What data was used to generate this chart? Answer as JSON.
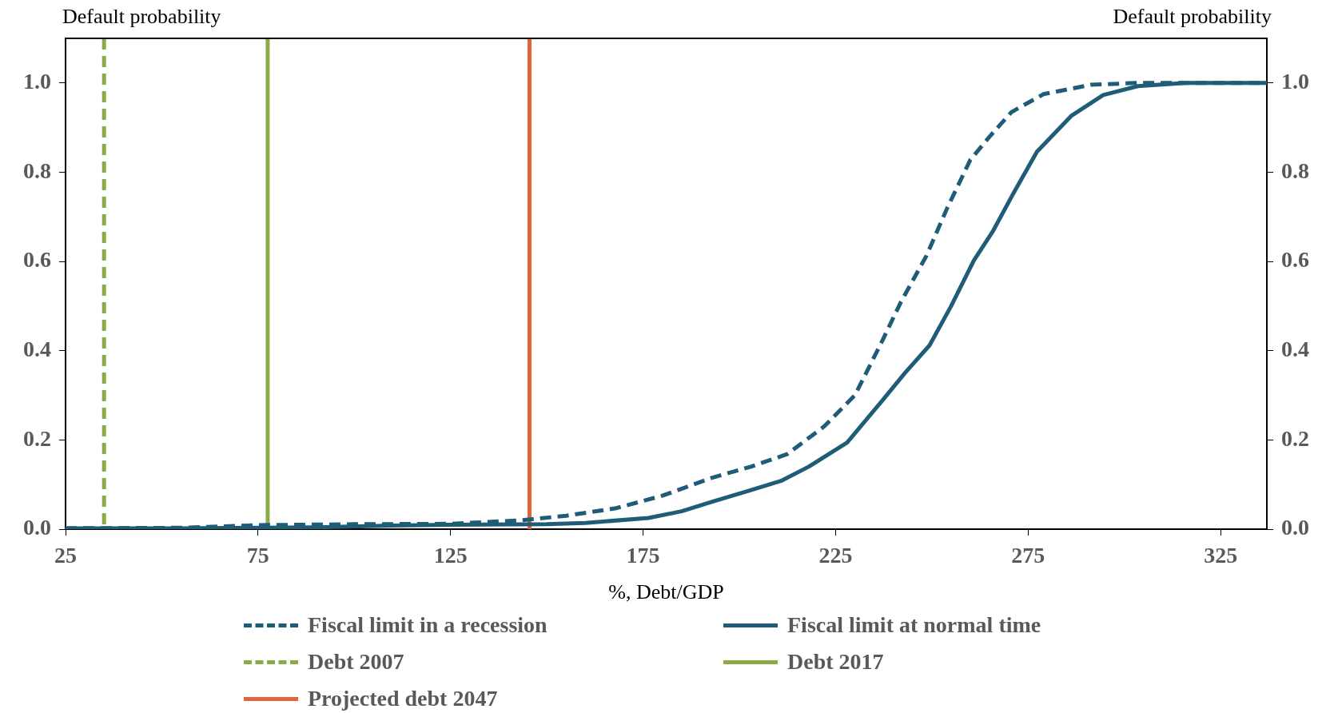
{
  "chart_data": {
    "type": "line",
    "xlabel": "%, Debt/GDP",
    "ylabel": "Default probability",
    "y2label": "Default probability",
    "xlim": [
      25,
      337
    ],
    "xticks": [
      25,
      75,
      125,
      175,
      225,
      275,
      325
    ],
    "ylim": [
      0,
      1.1
    ],
    "yticks": [
      {
        "value": 0,
        "label": "0.0"
      },
      {
        "value": 0.2,
        "label": "0.2"
      },
      {
        "value": 0.4,
        "label": "0.4"
      },
      {
        "value": 0.6,
        "label": "0.6"
      },
      {
        "value": 0.8,
        "label": "0.8"
      },
      {
        "value": 1,
        "label": "1.0"
      }
    ],
    "y2lim": [
      0,
      1.1
    ],
    "y2ticks": [
      {
        "value": 0,
        "label": "0.0"
      },
      {
        "value": 0.2,
        "label": "0.2"
      },
      {
        "value": 0.4,
        "label": "0.4"
      },
      {
        "value": 0.6,
        "label": "0.6"
      },
      {
        "value": 0.8,
        "label": "0.8"
      },
      {
        "value": 1,
        "label": "1.0"
      }
    ],
    "grid": false,
    "legend": "bottom",
    "marker": "none",
    "series": [
      {
        "name": "Fiscal limit in a recession",
        "color": "#1f5c78",
        "line_style": "dashed",
        "x": [
          25,
          55,
          75,
          100,
          125,
          143.5,
          155,
          168,
          180,
          192.8,
          203,
          212.4,
          222,
          230,
          237,
          242,
          248.6,
          254,
          260,
          265,
          270.7,
          279,
          291.3,
          303,
          320,
          337
        ],
        "values": [
          0.002,
          0.003,
          0.009,
          0.011,
          0.012,
          0.02,
          0.03,
          0.047,
          0.075,
          0.115,
          0.14,
          0.168,
          0.23,
          0.3,
          0.42,
          0.51,
          0.613,
          0.72,
          0.828,
          0.88,
          0.935,
          0.975,
          0.996,
          1.0,
          1.0,
          1.0
        ]
      },
      {
        "name": "Fiscal limit at normal time",
        "color": "#1f5c78",
        "line_style": "solid",
        "x": [
          25,
          55,
          75,
          90,
          110,
          125,
          150,
          160,
          176.4,
          185,
          192.8,
          202,
          210.8,
          218,
          228,
          237,
          243,
          249.4,
          255,
          260.9,
          265.8,
          271,
          277.3,
          286.3,
          294.5,
          303.5,
          315.9,
          337
        ],
        "values": [
          0.002,
          0.002,
          0.003,
          0.004,
          0.008,
          0.01,
          0.011,
          0.014,
          0.025,
          0.04,
          0.061,
          0.085,
          0.108,
          0.14,
          0.194,
          0.287,
          0.35,
          0.412,
          0.5,
          0.602,
          0.667,
          0.75,
          0.846,
          0.927,
          0.973,
          0.993,
          1.0,
          1.0
        ]
      }
    ],
    "ref_lines": [
      {
        "axis": "x",
        "value": 35,
        "label": "Debt 2007",
        "color": "#8aab45",
        "line_style": "dashed"
      },
      {
        "axis": "x",
        "value": 77.5,
        "label": "Debt 2017",
        "color": "#8aab45",
        "line_style": "solid"
      },
      {
        "axis": "x",
        "value": 145.5,
        "label": "Projected debt 2047",
        "color": "#e0653a",
        "line_style": "solid"
      }
    ]
  }
}
